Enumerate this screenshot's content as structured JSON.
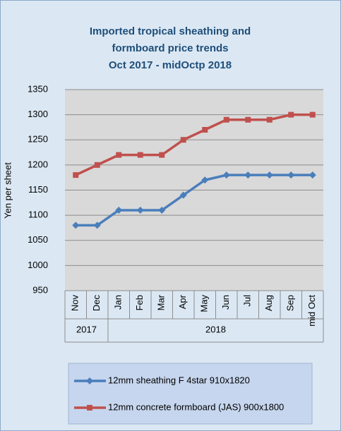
{
  "chart_data": {
    "type": "line",
    "title": [
      "Imported tropical sheathing and",
      "formboard price trends",
      "Oct 2017 - midOctp 2018"
    ],
    "ylabel": "Yen per sheet",
    "categories": [
      "Nov",
      "Dec",
      "Jan",
      "Feb",
      "Mar",
      "Apr",
      "May",
      "Jun",
      "Jul",
      "Aug",
      "Sep",
      "mid Oct"
    ],
    "years": [
      "2017",
      "2017",
      "2018",
      "2018",
      "2018",
      "2018",
      "2018",
      "2018",
      "2018",
      "2018",
      "2018",
      "2018"
    ],
    "series": [
      {
        "name": "12mm sheathing F 4star 910x1820",
        "color": "#4a7ebb",
        "marker": "diamond",
        "values": [
          1080,
          1080,
          1110,
          1110,
          1110,
          1140,
          1170,
          1180,
          1180,
          1180,
          1180,
          1180
        ]
      },
      {
        "name": "12mm concrete formboard (JAS) 900x1800",
        "color": "#c0504d",
        "marker": "square",
        "values": [
          1180,
          1200,
          1220,
          1220,
          1220,
          1250,
          1270,
          1290,
          1290,
          1290,
          1300,
          1300
        ]
      }
    ],
    "ylim": [
      950,
      1350
    ],
    "yticks": [
      950,
      1000,
      1050,
      1100,
      1150,
      1200,
      1250,
      1300,
      1350
    ],
    "grid": true
  }
}
